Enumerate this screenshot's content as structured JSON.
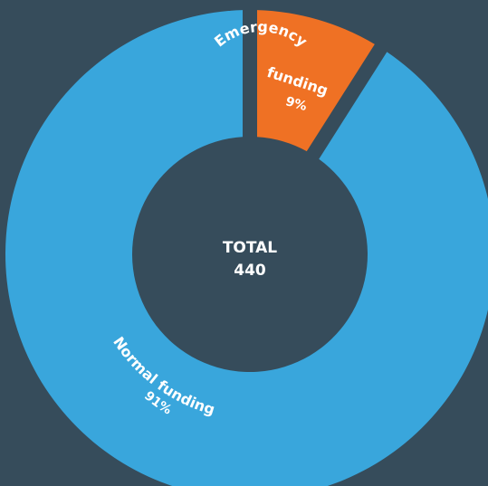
{
  "chart_data": {
    "type": "pie",
    "categories": [
      "Emergency funding",
      "Normal funding"
    ],
    "values": [
      9,
      91
    ],
    "percent_labels": [
      "9%",
      "91%"
    ],
    "colors": [
      "#ef7124",
      "#39a6dc"
    ],
    "background": "#364c5b",
    "center": {
      "title": "TOTAL",
      "value": "440"
    },
    "legend": "none"
  }
}
